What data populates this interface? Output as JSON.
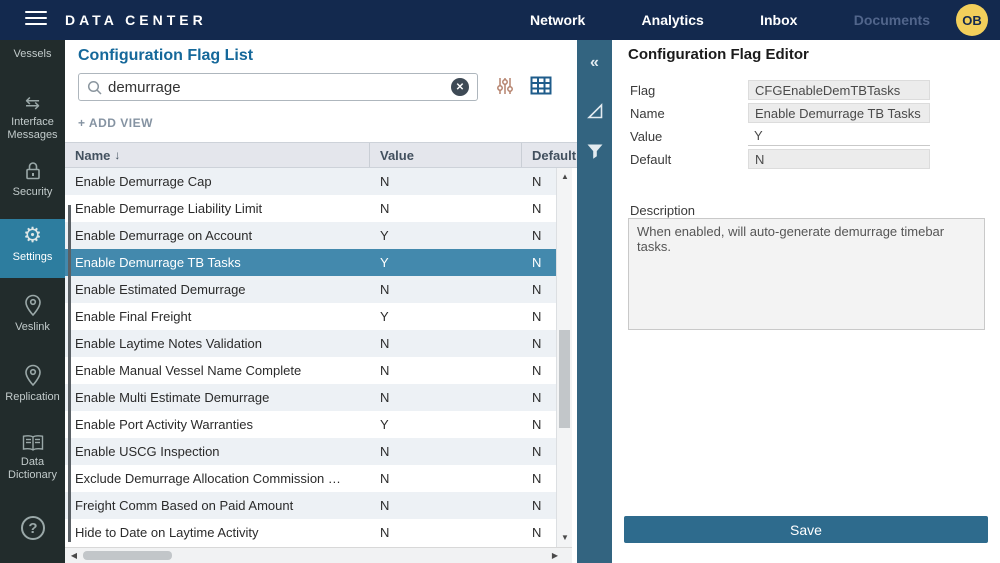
{
  "topbar": {
    "title": "DATA CENTER",
    "nav": [
      {
        "label": "Network"
      },
      {
        "label": "Analytics"
      },
      {
        "label": "Inbox"
      },
      {
        "label": "Documents",
        "disabled": true
      }
    ],
    "avatar": "OB"
  },
  "sidebar": {
    "items": [
      {
        "label": "Vessels",
        "icon": ""
      },
      {
        "label": "Interface Messages",
        "icon": "swap-arrows-icon"
      },
      {
        "label": "Security",
        "icon": "lock-icon"
      },
      {
        "label": "Settings",
        "icon": "gear-icon",
        "active": true
      },
      {
        "label": "Veslink",
        "icon": "location-pin-icon"
      },
      {
        "label": "Replication",
        "icon": "location-pin-icon"
      },
      {
        "label": "Data Dictionary",
        "icon": "book-icon"
      }
    ],
    "help": "?"
  },
  "list_panel": {
    "title": "Configuration Flag List",
    "search_value": "demurrage",
    "clear_glyph": "✕",
    "add_view_label": "+ ADD VIEW",
    "columns": {
      "name": "Name",
      "value": "Value",
      "default": "Default"
    },
    "sort_indicator": "↓",
    "rows": [
      {
        "name": "Enable Demurrage Cap",
        "value": "N",
        "default": "N"
      },
      {
        "name": "Enable Demurrage Liability Limit",
        "value": "N",
        "default": "N"
      },
      {
        "name": "Enable Demurrage on Account",
        "value": "Y",
        "default": "N"
      },
      {
        "name": "Enable Demurrage TB Tasks",
        "value": "Y",
        "default": "N",
        "selected": true
      },
      {
        "name": "Enable Estimated Demurrage",
        "value": "N",
        "default": "N"
      },
      {
        "name": "Enable Final Freight",
        "value": "Y",
        "default": "N"
      },
      {
        "name": "Enable Laytime Notes Validation",
        "value": "N",
        "default": "N"
      },
      {
        "name": "Enable Manual Vessel Name Complete",
        "value": "N",
        "default": "N"
      },
      {
        "name": "Enable Multi Estimate Demurrage",
        "value": "N",
        "default": "N"
      },
      {
        "name": "Enable Port Activity Warranties",
        "value": "Y",
        "default": "N"
      },
      {
        "name": "Enable USCG Inspection",
        "value": "N",
        "default": "N"
      },
      {
        "name": "Exclude Demurrage Allocation Commission …",
        "value": "N",
        "default": "N"
      },
      {
        "name": "Freight Comm Based on Paid Amount",
        "value": "N",
        "default": "N"
      },
      {
        "name": "Hide to Date on Laytime Activity",
        "value": "N",
        "default": "N"
      }
    ],
    "scroll_glyphs": {
      "up": "▲",
      "down": "▼",
      "left": "◀",
      "right": "▶"
    }
  },
  "strip": {
    "collapse_glyph": "«"
  },
  "editor_panel": {
    "title": "Configuration Flag Editor",
    "fields": [
      {
        "label": "Flag",
        "value": "CFGEnableDemTBTasks",
        "readonly": true
      },
      {
        "label": "Name",
        "value": "Enable Demurrage TB Tasks",
        "readonly": true
      },
      {
        "label": "Value",
        "value": "Y",
        "readonly": false
      },
      {
        "label": "Default",
        "value": "N",
        "readonly": true
      }
    ],
    "description_label": "Description",
    "description_value": "When enabled, will auto-generate demurrage timebar tasks.",
    "save_label": "Save"
  },
  "colors": {
    "topbar": "#13294e",
    "sidebar": "#222c2c",
    "active_item": "#2d7d9f",
    "selected_row": "#4389ad",
    "strip": "#336480",
    "save_button": "#2e6b8d",
    "list_title": "#15689a",
    "avatar_bg": "#f2cf5b",
    "alt_row": "#edf1f5"
  }
}
